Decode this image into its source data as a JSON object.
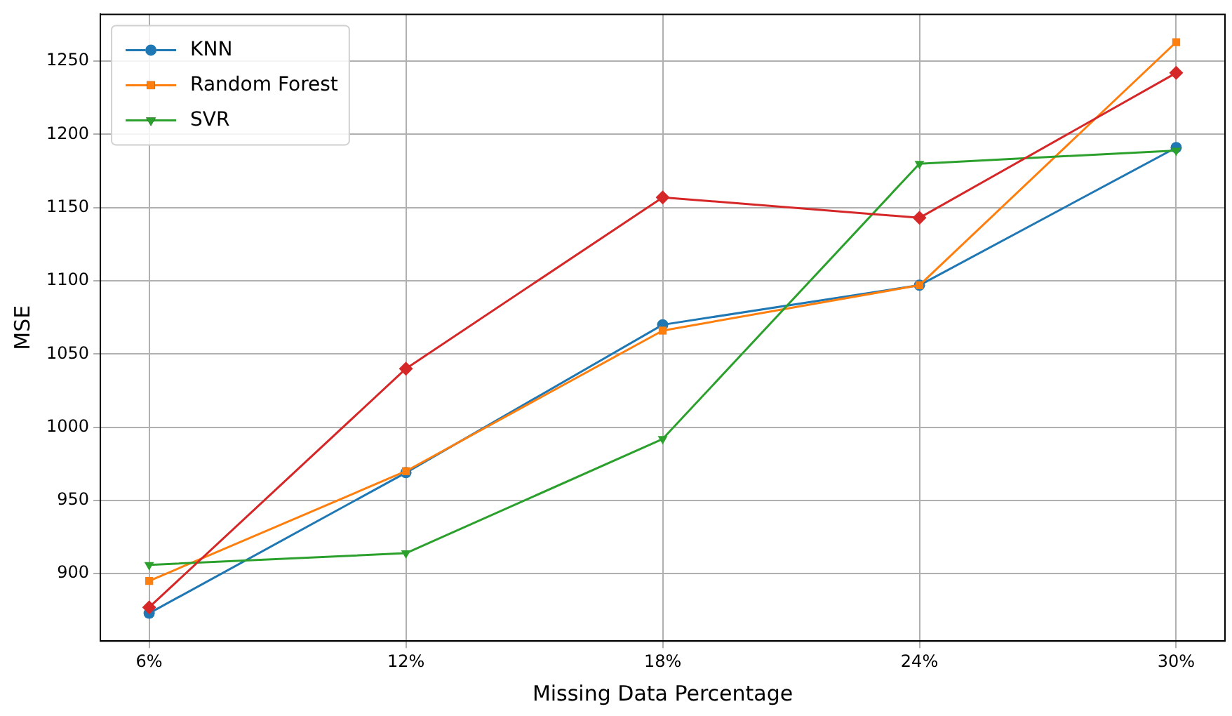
{
  "chart_data": {
    "type": "line",
    "xlabel": "Missing Data Percentage",
    "ylabel": "MSE",
    "categories": [
      "6%",
      "12%",
      "18%",
      "24%",
      "30%"
    ],
    "series": [
      {
        "name": "KNN",
        "color": "#1f77b4",
        "marker": "circle",
        "values": [
          873,
          969,
          1070,
          1097,
          1191
        ]
      },
      {
        "name": "Random Forest",
        "color": "#ff7f0e",
        "marker": "square",
        "values": [
          895,
          970,
          1066,
          1097,
          1263
        ]
      },
      {
        "name": "SVR",
        "color": "#2ca02c",
        "marker": "triangle",
        "values": [
          906,
          914,
          992,
          1180,
          1189
        ]
      },
      {
        "color": "#d62728",
        "marker": "diamond",
        "values": [
          877,
          1040,
          1157,
          1143,
          1242
        ]
      }
    ],
    "ylim": [
      854,
      1282
    ],
    "yticks": [
      900,
      950,
      1000,
      1050,
      1100,
      1150,
      1200,
      1250
    ],
    "grid": true,
    "legend": "top left",
    "line_style": "solid"
  }
}
